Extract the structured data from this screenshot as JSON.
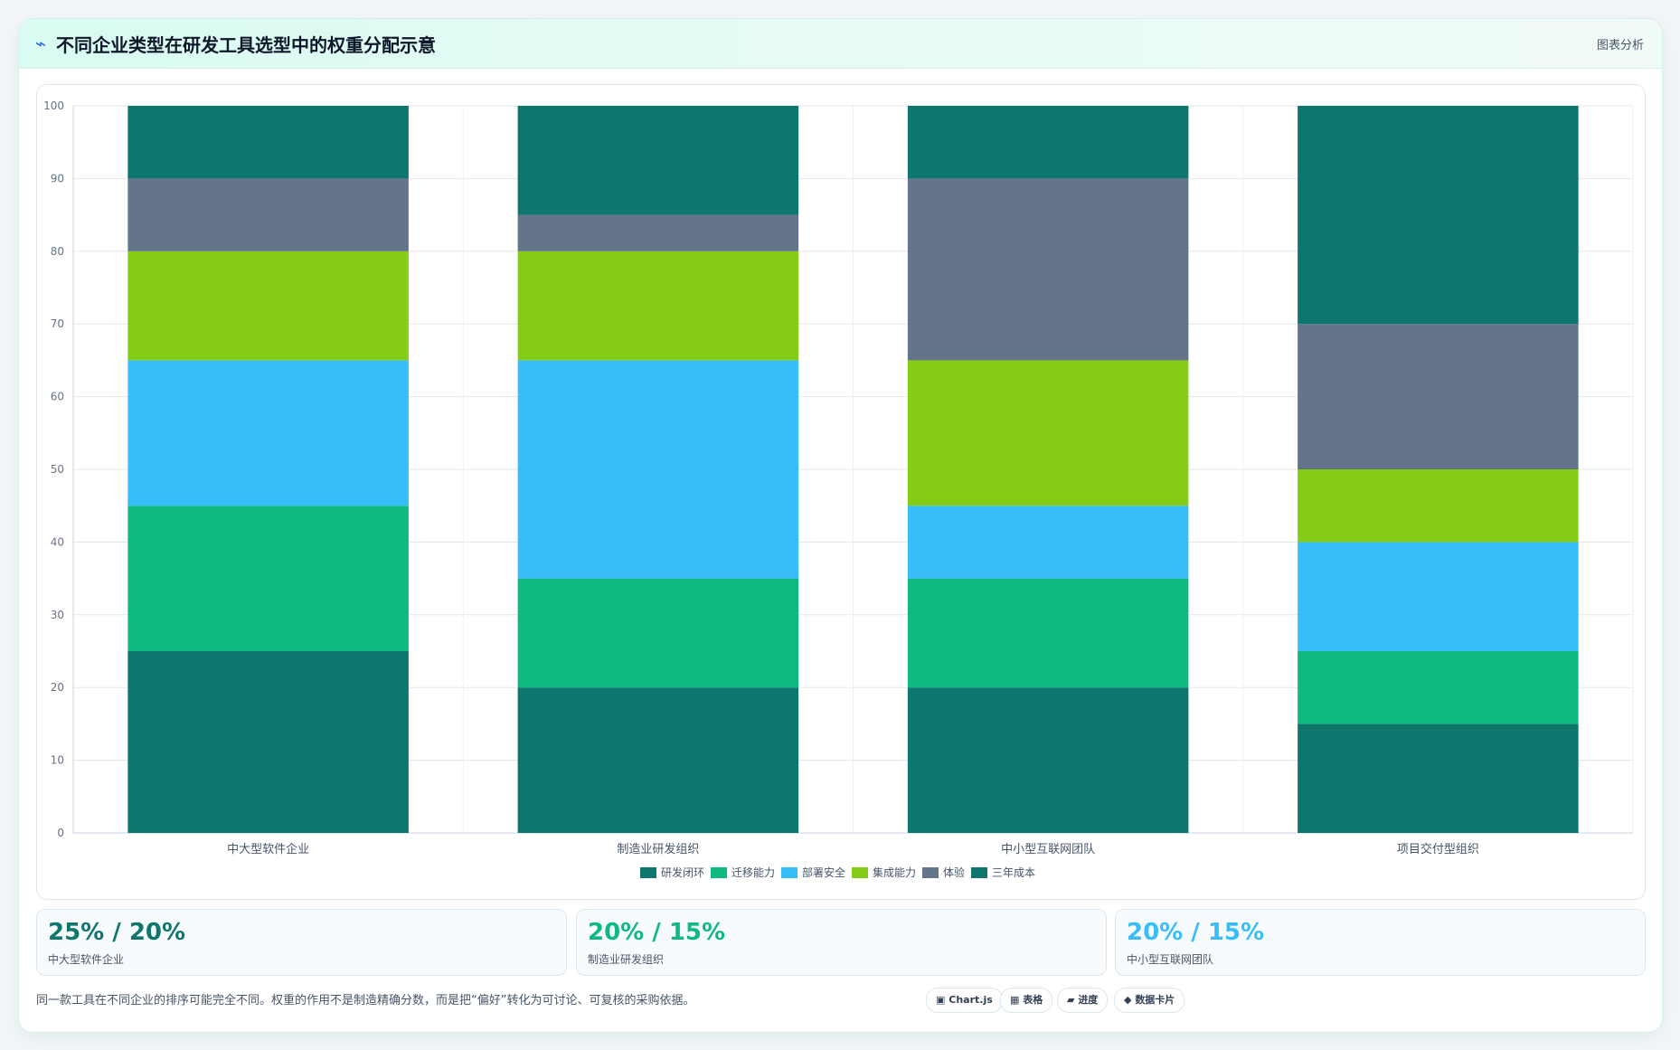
{
  "header": {
    "icon": "⌁",
    "title": "不同企业类型在研发工具选型中的权重分配示意",
    "right_label": "图表分析"
  },
  "colors": {
    "series": [
      "#0f766e",
      "#10b981",
      "#38bdf8",
      "#84cc16",
      "#64748b",
      "#0f766e"
    ],
    "stat_values": [
      "#0f766e",
      "#10b981",
      "#38bdf8"
    ]
  },
  "chart_data": {
    "type": "bar",
    "stacked": true,
    "categories": [
      "中大型软件企业",
      "制造业研发组织",
      "中小型互联网团队",
      "项目交付型组织"
    ],
    "series": [
      {
        "name": "研发闭环",
        "values": [
          25,
          20,
          20,
          15
        ]
      },
      {
        "name": "迁移能力",
        "values": [
          20,
          15,
          15,
          10
        ]
      },
      {
        "name": "部署安全",
        "values": [
          20,
          30,
          10,
          15
        ]
      },
      {
        "name": "集成能力",
        "values": [
          15,
          15,
          20,
          10
        ]
      },
      {
        "name": "体验",
        "values": [
          10,
          5,
          25,
          20
        ]
      },
      {
        "name": "三年成本",
        "values": [
          10,
          15,
          10,
          30
        ]
      }
    ],
    "ylim": [
      0,
      100
    ],
    "yticks": [
      0,
      10,
      20,
      30,
      40,
      50,
      60,
      70,
      80,
      90,
      100
    ],
    "grid": true,
    "legend": "bottom"
  },
  "stats": [
    {
      "value": "25% / 20%",
      "label": "中大型软件企业"
    },
    {
      "value": "20% / 15%",
      "label": "制造业研发组织"
    },
    {
      "value": "20% / 15%",
      "label": "中小型互联网团队"
    }
  ],
  "footnote": "同一款工具在不同企业的排序可能完全不同。权重的作用不是制造精确分数，而是把“偏好”转化为可讨论、可复核的采购依据。",
  "pills": [
    {
      "icon": "▣",
      "label": "Chart.js"
    },
    {
      "icon": "▦",
      "label": "表格"
    },
    {
      "icon": "▰",
      "label": "进度"
    },
    {
      "icon": "◆",
      "label": "数据卡片"
    }
  ]
}
